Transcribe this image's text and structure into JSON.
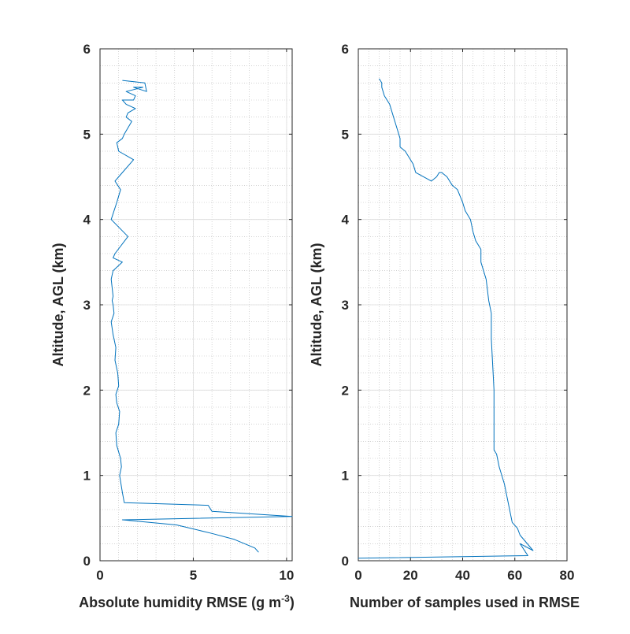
{
  "chart_data": [
    {
      "type": "line",
      "xlabel": "Absolute humidity RMSE (g m",
      "xlabel_superscript": "-3",
      "xlabel_suffix": ")",
      "ylabel": "Altitude, AGL (km)",
      "xlim": [
        0,
        10.3
      ],
      "ylim": [
        0,
        6
      ],
      "xticks": [
        0,
        5,
        10
      ],
      "yticks": [
        0,
        1,
        2,
        3,
        4,
        5,
        6
      ],
      "grid": true,
      "minor_grid": true,
      "line_color": "#0072BD",
      "series": [
        {
          "x": [
            8.5,
            8.3,
            7.2,
            6.0,
            4.1,
            1.2,
            1.3,
            10.3,
            6.0,
            5.8,
            1.3,
            1.2,
            1.05,
            1.15,
            1.1,
            0.9,
            0.85,
            1.0,
            1.05,
            0.9,
            0.85,
            1.0,
            0.95,
            0.8,
            0.85,
            0.7,
            0.6,
            0.75,
            0.7,
            0.65,
            0.7,
            0.65,
            0.6,
            0.7,
            1.2,
            0.7,
            0.8,
            1.5,
            0.6,
            0.9,
            1.1,
            0.8,
            1.0,
            1.8,
            1.0,
            0.9,
            1.2,
            1.3,
            1.7,
            1.4,
            1.5,
            1.9,
            1.4,
            1.2,
            1.8,
            1.9,
            1.4,
            2.3,
            1.8,
            2.5,
            2.4,
            1.2
          ],
          "y": [
            0.1,
            0.15,
            0.25,
            0.32,
            0.42,
            0.48,
            0.48,
            0.52,
            0.58,
            0.65,
            0.68,
            0.8,
            1.0,
            1.1,
            1.2,
            1.35,
            1.5,
            1.6,
            1.75,
            1.85,
            1.95,
            2.05,
            2.2,
            2.35,
            2.5,
            2.65,
            2.8,
            2.9,
            3.0,
            3.05,
            3.1,
            3.2,
            3.3,
            3.4,
            3.5,
            3.55,
            3.6,
            3.8,
            4.0,
            4.2,
            4.35,
            4.45,
            4.5,
            4.7,
            4.8,
            4.9,
            4.95,
            5.0,
            5.15,
            5.2,
            5.25,
            5.3,
            5.35,
            5.4,
            5.4,
            5.45,
            5.5,
            5.55,
            5.55,
            5.5,
            5.6,
            5.63
          ]
        }
      ]
    },
    {
      "type": "line",
      "xlabel": "Number of samples used in RMSE",
      "ylabel": "Altitude, AGL (km)",
      "xlim": [
        0,
        80
      ],
      "ylim": [
        0,
        6
      ],
      "xticks": [
        0,
        20,
        40,
        60,
        80
      ],
      "yticks": [
        0,
        1,
        2,
        3,
        4,
        5,
        6
      ],
      "grid": true,
      "minor_grid": true,
      "line_color": "#0072BD",
      "series": [
        {
          "x": [
            0,
            65,
            62,
            67,
            62,
            61,
            59,
            58,
            57,
            56,
            54,
            53,
            52,
            52,
            51,
            51,
            50,
            49,
            47,
            47,
            45,
            44,
            43,
            41,
            40,
            38,
            36,
            34,
            32,
            31,
            30,
            28,
            28,
            22,
            21,
            19,
            18,
            16,
            16,
            15,
            14,
            13,
            12,
            10,
            9,
            9,
            8
          ],
          "y": [
            0.03,
            0.06,
            0.2,
            0.12,
            0.3,
            0.38,
            0.45,
            0.6,
            0.75,
            0.9,
            1.1,
            1.25,
            1.3,
            2.0,
            2.6,
            2.9,
            3.05,
            3.3,
            3.5,
            3.65,
            3.75,
            3.85,
            4.0,
            4.1,
            4.2,
            4.35,
            4.4,
            4.5,
            4.55,
            4.55,
            4.5,
            4.45,
            4.45,
            4.55,
            4.65,
            4.75,
            4.8,
            4.85,
            4.95,
            5.05,
            5.15,
            5.25,
            5.35,
            5.45,
            5.55,
            5.6,
            5.65
          ]
        }
      ]
    }
  ]
}
